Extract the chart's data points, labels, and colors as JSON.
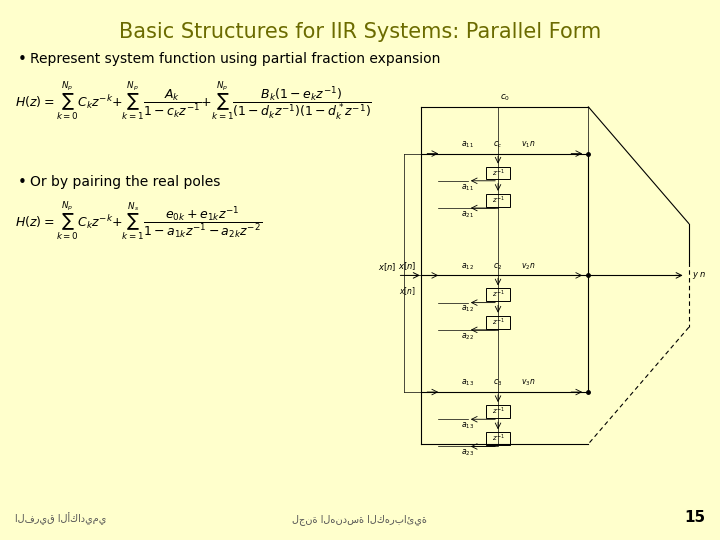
{
  "background_color": "#FFFFCC",
  "title": "Basic Structures for IIR Systems: Parallel Form",
  "title_color": "#6B6B00",
  "title_fontsize": 15,
  "bullet1": "Represent system function using partial fraction expansion",
  "bullet2": "Or by pairing the real poles",
  "text_color": "#000000",
  "footer_left": "الفريق الأكاديمي",
  "footer_center": "لجنة الهندسة الكهربائية",
  "footer_number": "15"
}
